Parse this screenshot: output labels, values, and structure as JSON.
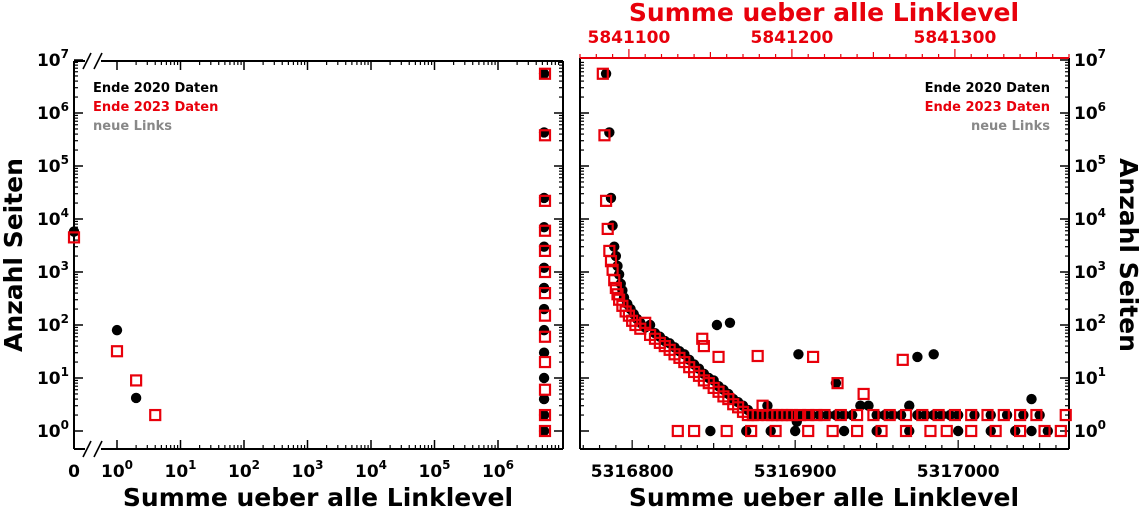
{
  "colors": {
    "series_2020": "#000000",
    "series_2023": "#e8000b",
    "series_new": "#888888",
    "top_axis": "#e8000b"
  },
  "chart_data": [
    {
      "type": "scatter",
      "xlabel": "Summe ueber alle Linklevel",
      "ylabel": "Anzahl Seiten",
      "xscale": "log",
      "yscale": "log",
      "xbreak": true,
      "xlim": [
        0.5,
        7000000
      ],
      "ylim": [
        0.7,
        10000000
      ],
      "x_ticks": [
        "0",
        "10^0",
        "10^1",
        "10^2",
        "10^3",
        "10^4",
        "10^5",
        "10^6"
      ],
      "y_ticks": [
        "10^0",
        "10^1",
        "10^2",
        "10^3",
        "10^4",
        "10^5",
        "10^6",
        "10^7"
      ],
      "legend": {
        "placement": "top-left",
        "entries": [
          "Ende 2020 Daten",
          "Ende 2023 Daten",
          "neue Links"
        ]
      },
      "series": [
        {
          "name": "Ende 2020 Daten",
          "marker": "filled-circle",
          "points": [
            [
              0,
              5800
            ],
            [
              1,
              80
            ],
            [
              2,
              4.2
            ],
            [
              5316784,
              5500000
            ],
            [
              5316784,
              430000
            ],
            [
              5316784,
              25000
            ],
            [
              5316784,
              7000
            ],
            [
              5316784,
              3000
            ],
            [
              5316784,
              1200
            ],
            [
              5316784,
              500
            ],
            [
              5316784,
              200
            ],
            [
              5316784,
              80
            ],
            [
              5316784,
              30
            ],
            [
              5316784,
              10
            ],
            [
              5316784,
              4
            ],
            [
              5316784,
              2
            ],
            [
              5316784,
              1
            ]
          ]
        },
        {
          "name": "Ende 2023 Daten",
          "marker": "open-square",
          "points": [
            [
              0,
              4500
            ],
            [
              1,
              32
            ],
            [
              2,
              9
            ],
            [
              4,
              2
            ],
            [
              5841084,
              5500000
            ],
            [
              5841084,
              380000
            ],
            [
              5841084,
              22000
            ],
            [
              5841084,
              6000
            ],
            [
              5841084,
              2500
            ],
            [
              5841084,
              1000
            ],
            [
              5841084,
              400
            ],
            [
              5841084,
              150
            ],
            [
              5841084,
              60
            ],
            [
              5841084,
              20
            ],
            [
              5841084,
              6
            ],
            [
              5841084,
              2
            ],
            [
              5841084,
              1
            ]
          ]
        }
      ]
    },
    {
      "type": "scatter",
      "xlabel": "Summe ueber alle Linklevel",
      "x2label": "Summe ueber alle Linklevel",
      "ylabel": "Anzahl Seiten",
      "yscale": "log",
      "xlim": [
        5316768,
        5317068
      ],
      "x2lim": [
        5841070,
        5841370
      ],
      "ylim": [
        0.7,
        10000000
      ],
      "x_ticks": [
        "5316800",
        "5316900",
        "5317000"
      ],
      "x2_ticks": [
        "5841100",
        "5841200",
        "5841300"
      ],
      "y_ticks": [
        "10^0",
        "10^1",
        "10^2",
        "10^3",
        "10^4",
        "10^5",
        "10^6",
        "10^7"
      ],
      "legend": {
        "placement": "top-right",
        "entries": [
          "Ende 2020 Daten",
          "Ende 2023 Daten",
          "neue Links"
        ]
      },
      "series": [
        {
          "name": "Ende 2020 Daten",
          "axis": "bottom",
          "marker": "filled-circle",
          "points": [
            [
              5316784,
              5500000
            ],
            [
              5316786,
              430000
            ],
            [
              5316787,
              25000
            ],
            [
              5316788,
              7500
            ],
            [
              5316789,
              3000
            ],
            [
              5316790,
              2000
            ],
            [
              5316791,
              1300
            ],
            [
              5316792,
              900
            ],
            [
              5316793,
              600
            ],
            [
              5316794,
              450
            ],
            [
              5316795,
              330
            ],
            [
              5316797,
              250
            ],
            [
              5316799,
              200
            ],
            [
              5316801,
              160
            ],
            [
              5316803,
              130
            ],
            [
              5316805,
              110
            ],
            [
              5316808,
              90
            ],
            [
              5316811,
              100
            ],
            [
              5316814,
              70
            ],
            [
              5316817,
              60
            ],
            [
              5316820,
              50
            ],
            [
              5316823,
              45
            ],
            [
              5316826,
              38
            ],
            [
              5316829,
              32
            ],
            [
              5316832,
              28
            ],
            [
              5316835,
              22
            ],
            [
              5316838,
              18
            ],
            [
              5316841,
              15
            ],
            [
              5316844,
              12
            ],
            [
              5316847,
              10
            ],
            [
              5316850,
              9
            ],
            [
              5316853,
              7
            ],
            [
              5316856,
              6
            ],
            [
              5316859,
              5
            ],
            [
              5316862,
              4
            ],
            [
              5316865,
              3.5
            ],
            [
              5316868,
              3
            ],
            [
              5316871,
              2.5
            ],
            [
              5316874,
              2
            ],
            [
              5316877,
              2
            ],
            [
              5316880,
              2
            ],
            [
              5316883,
              3
            ],
            [
              5316886,
              2
            ],
            [
              5316889,
              2
            ],
            [
              5316892,
              2
            ],
            [
              5316895,
              2
            ],
            [
              5316898,
              2
            ],
            [
              5316901,
              1.5
            ],
            [
              5316904,
              2
            ],
            [
              5316907,
              2
            ],
            [
              5316910,
              2
            ],
            [
              5316915,
              2
            ],
            [
              5316920,
              2
            ],
            [
              5316925,
              2
            ],
            [
              5316930,
              2
            ],
            [
              5316935,
              2
            ],
            [
              5316940,
              3
            ],
            [
              5316945,
              3
            ],
            [
              5316950,
              2
            ],
            [
              5316955,
              2
            ],
            [
              5316960,
              2
            ],
            [
              5316965,
              2
            ],
            [
              5316970,
              3
            ],
            [
              5316975,
              2
            ],
            [
              5316980,
              2
            ],
            [
              5316985,
              2
            ],
            [
              5316990,
              2
            ],
            [
              5316995,
              2
            ],
            [
              5317000,
              2
            ],
            [
              5317010,
              2
            ],
            [
              5317020,
              2
            ],
            [
              5317030,
              2
            ],
            [
              5317040,
              2
            ],
            [
              5317050,
              2
            ],
            [
              5316852,
              100
            ],
            [
              5316860,
              110
            ],
            [
              5316902,
              28
            ],
            [
              5316925,
              8
            ],
            [
              5316975,
              25
            ],
            [
              5316985,
              28
            ],
            [
              5317045,
              4
            ],
            [
              5316848,
              1
            ],
            [
              5316870,
              1
            ],
            [
              5316885,
              1
            ],
            [
              5316900,
              1
            ],
            [
              5316930,
              1
            ],
            [
              5316950,
              1
            ],
            [
              5316970,
              1
            ],
            [
              5317000,
              1
            ],
            [
              5317020,
              1
            ],
            [
              5317035,
              1
            ],
            [
              5317045,
              1
            ],
            [
              5317055,
              1
            ]
          ]
        },
        {
          "name": "Ende 2023 Daten",
          "axis": "top",
          "marker": "open-square",
          "points": [
            [
              5841084,
              5500000
            ],
            [
              5841085,
              380000
            ],
            [
              5841086,
              22000
            ],
            [
              5841087,
              6500
            ],
            [
              5841088,
              2500
            ],
            [
              5841089,
              1600
            ],
            [
              5841090,
              1100
            ],
            [
              5841091,
              700
            ],
            [
              5841092,
              500
            ],
            [
              5841093,
              380
            ],
            [
              5841094,
              300
            ],
            [
              5841096,
              230
            ],
            [
              5841098,
              180
            ],
            [
              5841100,
              150
            ],
            [
              5841102,
              120
            ],
            [
              5841104,
              100
            ],
            [
              5841107,
              85
            ],
            [
              5841110,
              110
            ],
            [
              5841113,
              65
            ],
            [
              5841116,
              55
            ],
            [
              5841119,
              46
            ],
            [
              5841122,
              40
            ],
            [
              5841125,
              34
            ],
            [
              5841128,
              28
            ],
            [
              5841131,
              24
            ],
            [
              5841134,
              20
            ],
            [
              5841137,
              16
            ],
            [
              5841140,
              13
            ],
            [
              5841143,
              11
            ],
            [
              5841146,
              9
            ],
            [
              5841149,
              8
            ],
            [
              5841152,
              6.5
            ],
            [
              5841155,
              5.5
            ],
            [
              5841158,
              4.5
            ],
            [
              5841161,
              4
            ],
            [
              5841164,
              3.2
            ],
            [
              5841167,
              2.8
            ],
            [
              5841170,
              2.3
            ],
            [
              5841173,
              2
            ],
            [
              5841176,
              2
            ],
            [
              5841179,
              2
            ],
            [
              5841182,
              3
            ],
            [
              5841185,
              2
            ],
            [
              5841188,
              2
            ],
            [
              5841191,
              2
            ],
            [
              5841194,
              2
            ],
            [
              5841197,
              2
            ],
            [
              5841200,
              2
            ],
            [
              5841205,
              2
            ],
            [
              5841210,
              2
            ],
            [
              5841215,
              2
            ],
            [
              5841220,
              2
            ],
            [
              5841230,
              2
            ],
            [
              5841240,
              2
            ],
            [
              5841250,
              2
            ],
            [
              5841260,
              2
            ],
            [
              5841270,
              2
            ],
            [
              5841280,
              2
            ],
            [
              5841290,
              2
            ],
            [
              5841300,
              2
            ],
            [
              5841310,
              2
            ],
            [
              5841320,
              2
            ],
            [
              5841330,
              2
            ],
            [
              5841340,
              2
            ],
            [
              5841350,
              2
            ],
            [
              5841145,
              55
            ],
            [
              5841146,
              40
            ],
            [
              5841155,
              25
            ],
            [
              5841179,
              26
            ],
            [
              5841213,
              25
            ],
            [
              5841244,
              5
            ],
            [
              5841268,
              22
            ],
            [
              5841228,
              8
            ],
            [
              5841130,
              1
            ],
            [
              5841140,
              1
            ],
            [
              5841160,
              1
            ],
            [
              5841175,
              1
            ],
            [
              5841190,
              1
            ],
            [
              5841210,
              1
            ],
            [
              5841225,
              1
            ],
            [
              5841240,
              1
            ],
            [
              5841255,
              1
            ],
            [
              5841270,
              1
            ],
            [
              5841285,
              1
            ],
            [
              5841295,
              1
            ],
            [
              5841310,
              1
            ],
            [
              5841325,
              1
            ],
            [
              5841340,
              1
            ],
            [
              5841355,
              1
            ],
            [
              5841365,
              1
            ],
            [
              5841368,
              2
            ]
          ]
        }
      ]
    }
  ]
}
